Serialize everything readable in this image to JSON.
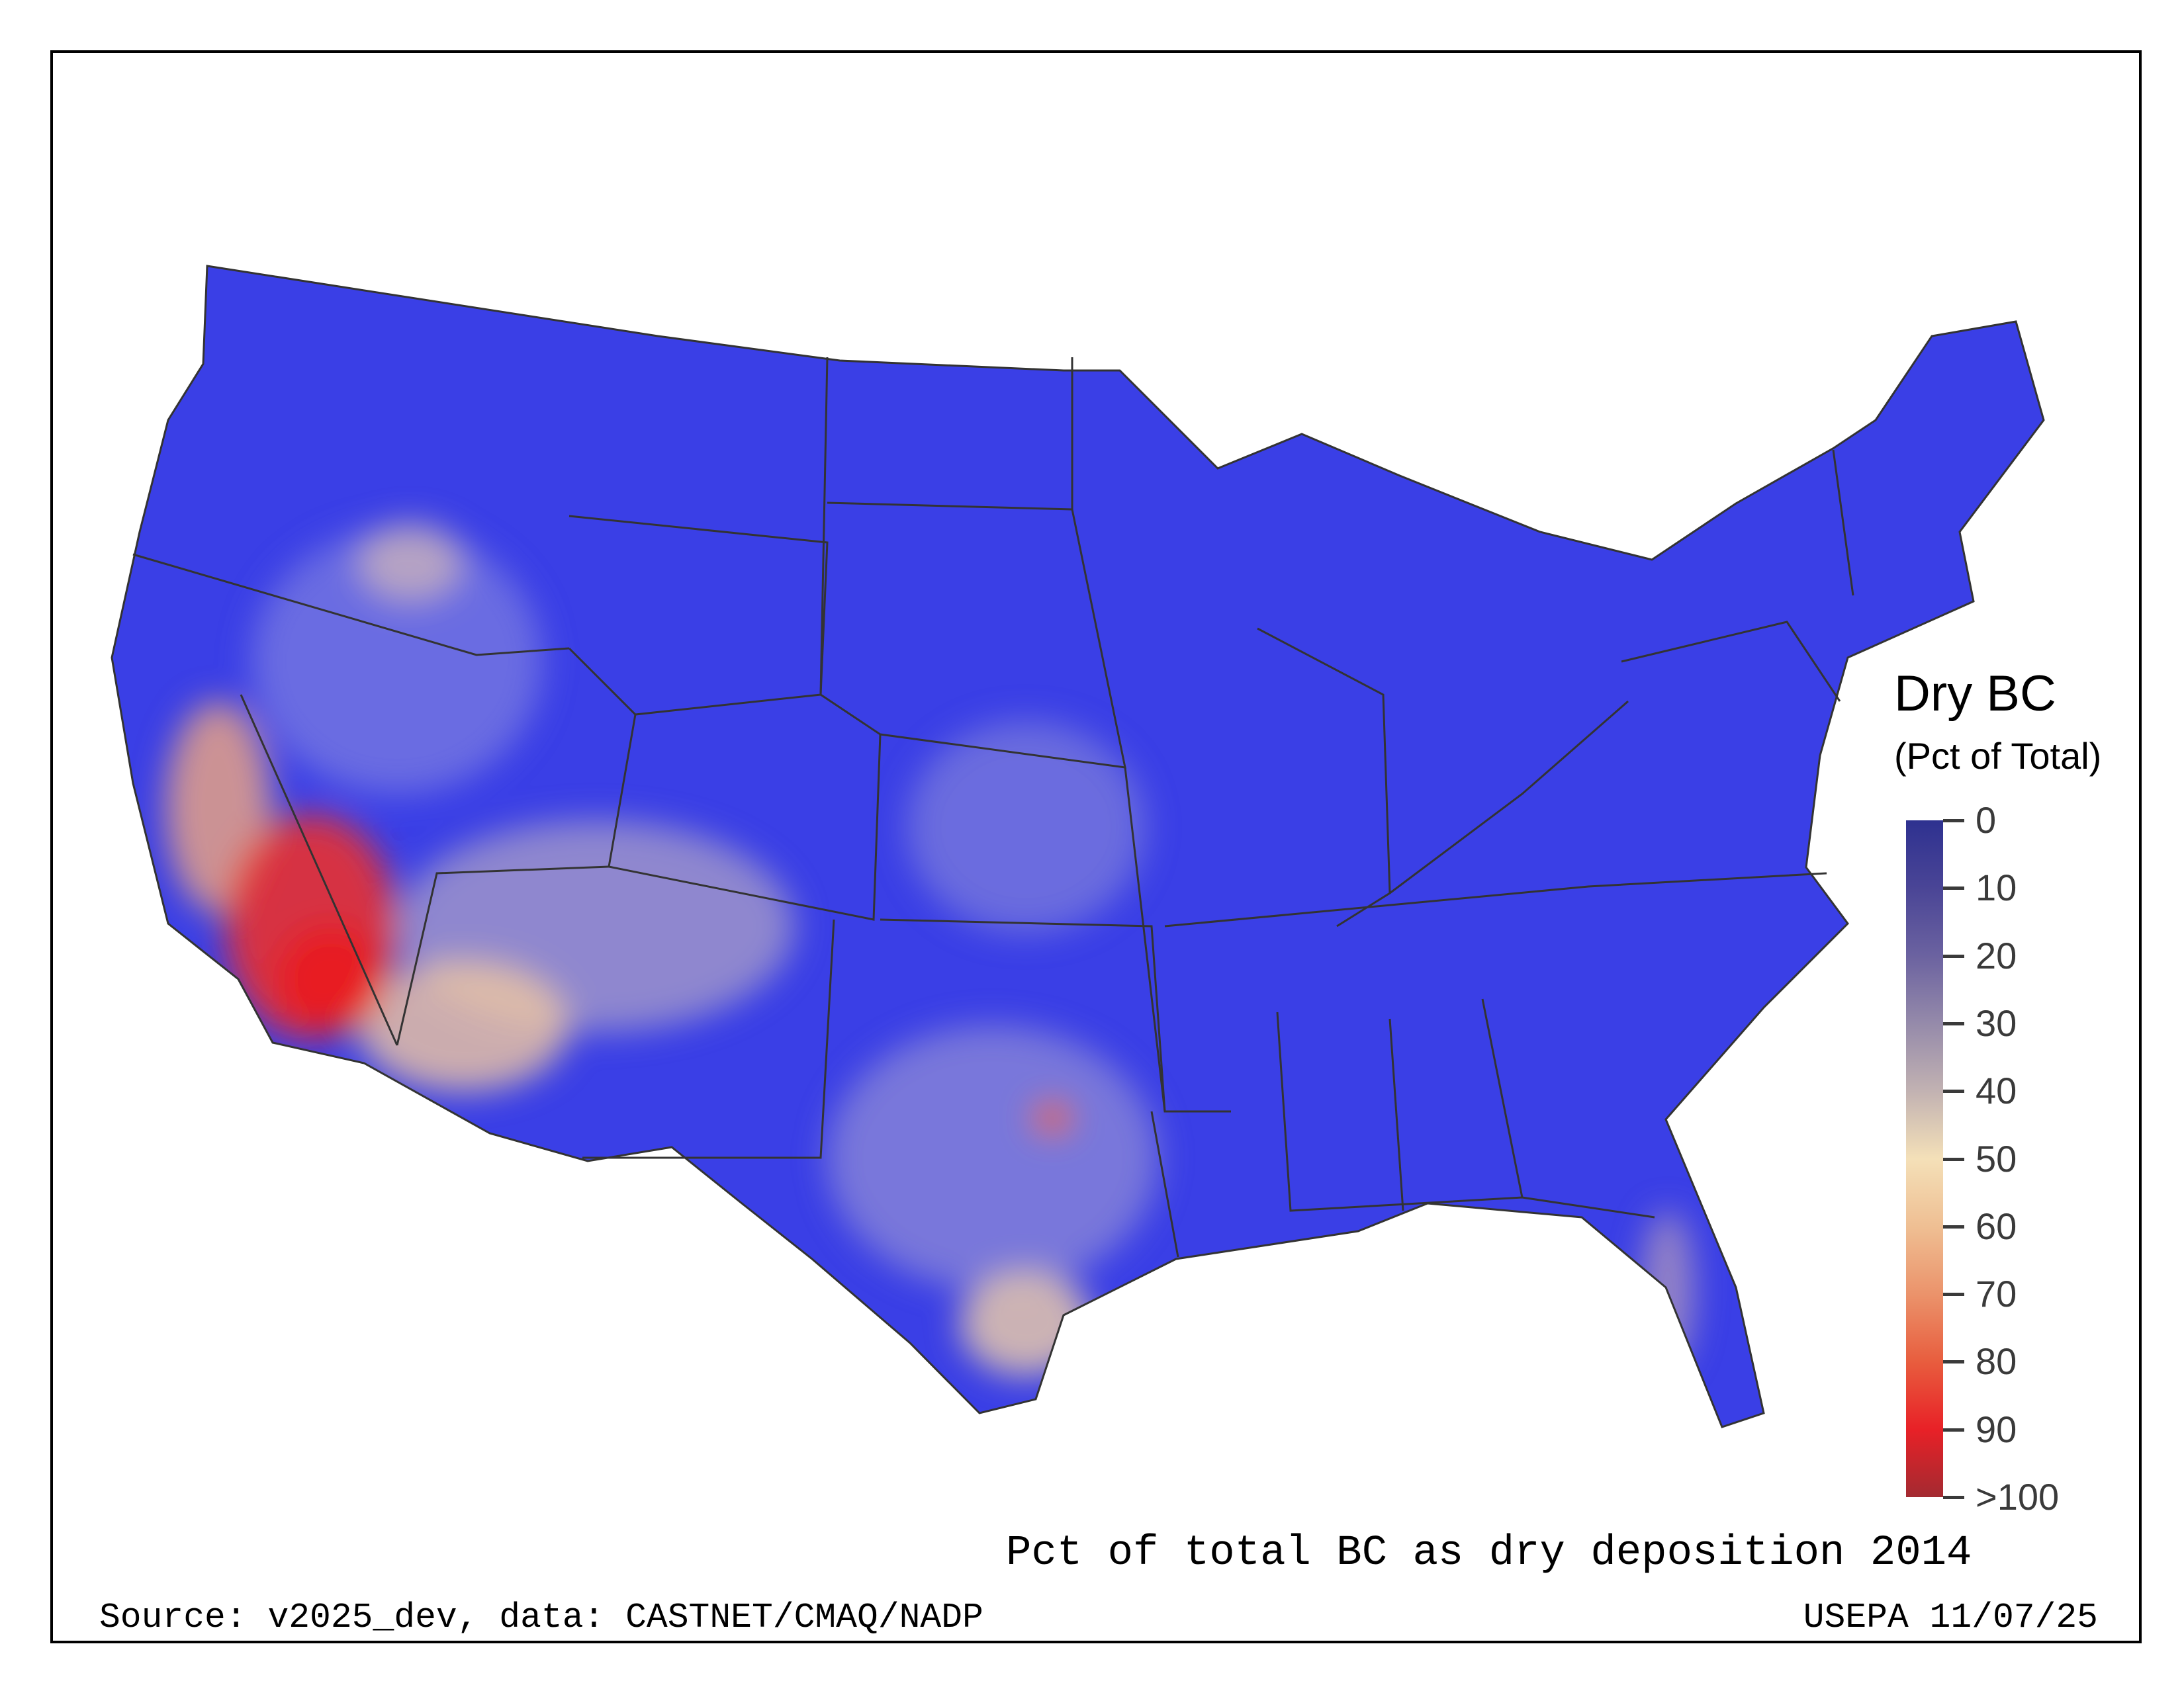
{
  "legend": {
    "title": "Dry BC",
    "subtitle": "(Pct of Total)",
    "ticks": [
      "0",
      "10",
      "20",
      "30",
      "40",
      "50",
      "60",
      "70",
      "80",
      "90",
      ">100"
    ],
    "colors": [
      "#2e3190",
      "#4a4596",
      "#6b62a0",
      "#958aaa",
      "#c2b2b2",
      "#f4e0b8",
      "#efbf93",
      "#eb936b",
      "#e85d3e",
      "#e82127",
      "#a32a31"
    ]
  },
  "map": {
    "title": "Pct of total BC as dry deposition 2014",
    "dominant_color": "#3a3fe6",
    "high_color": "#e8202a"
  },
  "footer": {
    "source": "Source: v2025_dev, data: CASTNET/CMAQ/NADP",
    "credit": "USEPA 11/07/25"
  }
}
